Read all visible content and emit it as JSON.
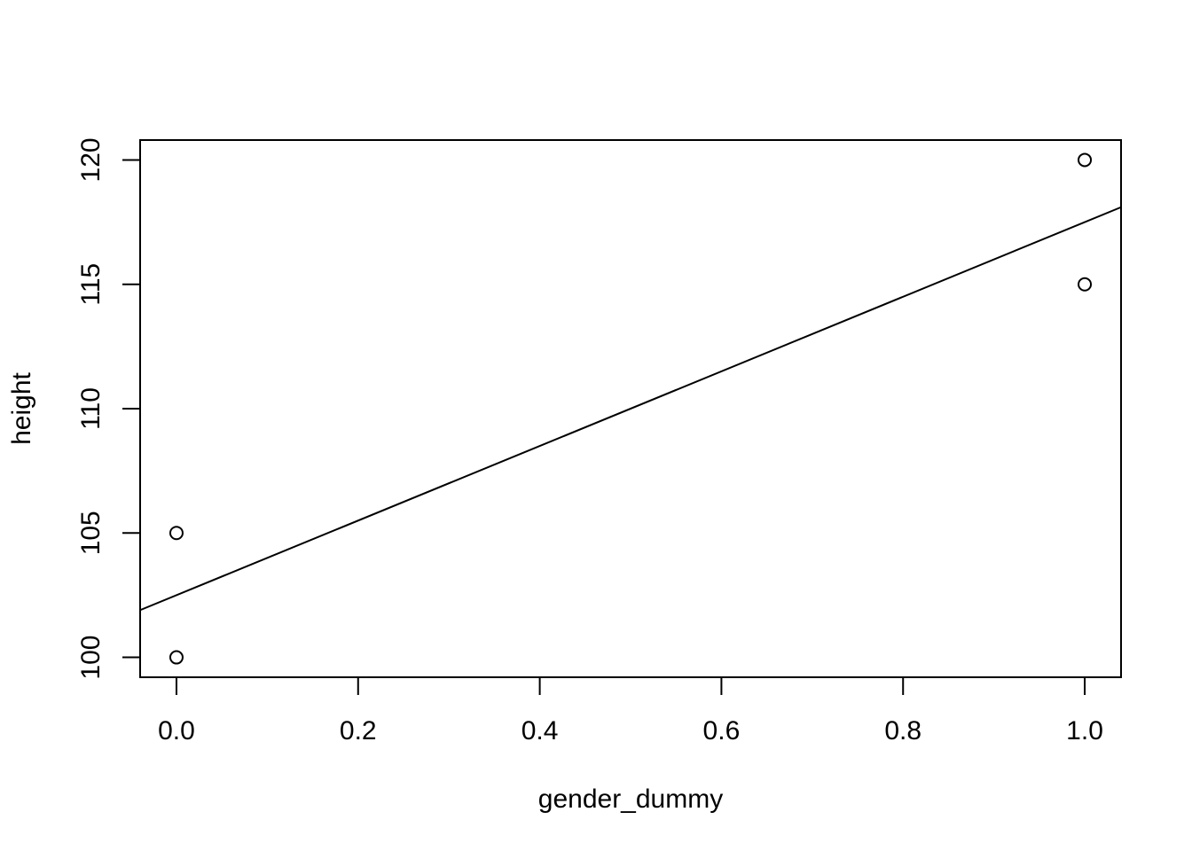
{
  "chart_data": {
    "type": "scatter",
    "title": "",
    "xlabel": "gender_dummy",
    "ylabel": "height",
    "xlim": [
      -0.04,
      1.04
    ],
    "ylim": [
      99.2,
      120.8
    ],
    "x_ticks": [
      0.0,
      0.2,
      0.4,
      0.6,
      0.8,
      1.0
    ],
    "x_tick_labels": [
      "0.0",
      "0.2",
      "0.4",
      "0.6",
      "0.8",
      "1.0"
    ],
    "y_ticks": [
      100,
      105,
      110,
      115,
      120
    ],
    "y_tick_labels": [
      "100",
      "105",
      "110",
      "115",
      "120"
    ],
    "points": [
      {
        "x": 0,
        "y": 100
      },
      {
        "x": 0,
        "y": 105
      },
      {
        "x": 1,
        "y": 115
      },
      {
        "x": 1,
        "y": 120
      }
    ],
    "regression_line": {
      "intercept": 102.5,
      "slope": 15
    },
    "grid": false,
    "colors": {
      "ink": "#000000",
      "background": "#ffffff"
    }
  }
}
